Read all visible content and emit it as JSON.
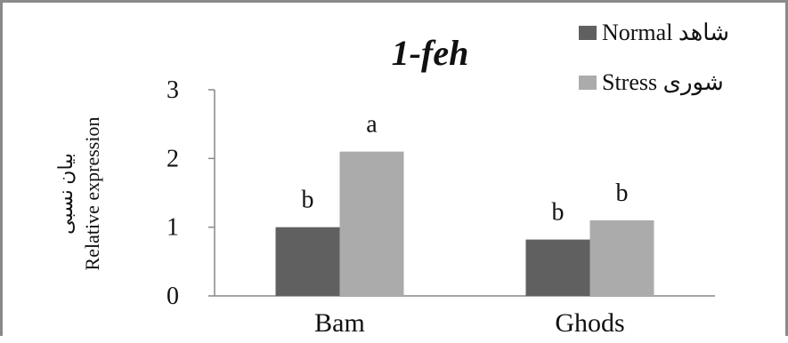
{
  "chart_data": {
    "type": "bar",
    "title": "1-feh",
    "ylabel": "بیان نسبی",
    "ylabel_secondary": "Relative expression",
    "xlabel": "",
    "categories": [
      "Bam",
      "Ghods"
    ],
    "series": [
      {
        "name": "Normal شاهد",
        "color": "#606060",
        "values": [
          1.0,
          0.82
        ]
      },
      {
        "name": "Stress شوری",
        "color": "#ababab",
        "values": [
          2.1,
          1.1
        ]
      }
    ],
    "data_labels": [
      [
        "b",
        "b"
      ],
      [
        "a",
        "b"
      ]
    ],
    "ylim": [
      0,
      3
    ],
    "yticks": [
      "0",
      "1",
      "2",
      "3"
    ],
    "grid": false,
    "legend_position": "top-right"
  }
}
